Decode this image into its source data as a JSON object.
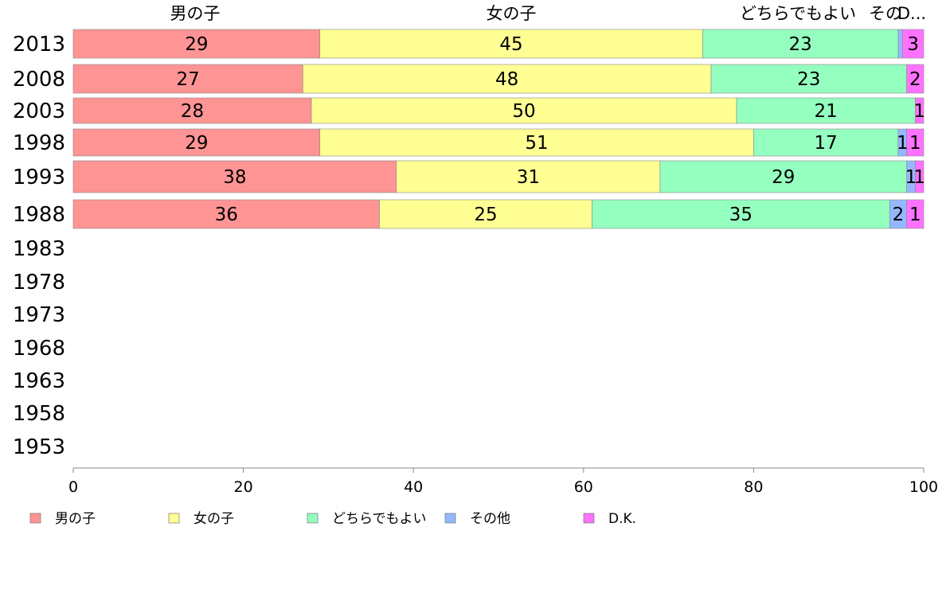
{
  "chart_data": {
    "type": "bar",
    "orientation": "horizontal",
    "stacked": true,
    "categories": [
      "2013",
      "2008",
      "2003",
      "1998",
      "1993",
      "1988",
      "1983",
      "1978",
      "1973",
      "1968",
      "1963",
      "1958",
      "1953"
    ],
    "series": [
      {
        "name": "男の子",
        "color": "#ff9494",
        "values": [
          29,
          27,
          28,
          29,
          38,
          36,
          null,
          null,
          null,
          null,
          null,
          null,
          null
        ]
      },
      {
        "name": "女の子",
        "color": "#ffff94",
        "values": [
          45,
          48,
          50,
          51,
          31,
          25,
          null,
          null,
          null,
          null,
          null,
          null,
          null
        ]
      },
      {
        "name": "どちらでもよい",
        "color": "#94ffbf",
        "values": [
          23,
          23,
          21,
          17,
          29,
          35,
          null,
          null,
          null,
          null,
          null,
          null,
          null
        ]
      },
      {
        "name": "その他",
        "color": "#94b8ff",
        "values": [
          0.5,
          0,
          0,
          1,
          1,
          2,
          null,
          null,
          null,
          null,
          null,
          null,
          null
        ]
      },
      {
        "name": "D.K.",
        "color": "#ff72ff",
        "values": [
          3,
          2,
          1,
          1,
          1,
          1,
          null,
          null,
          null,
          null,
          null,
          null,
          null
        ]
      }
    ],
    "top_labels": [
      "男の子",
      "女の子",
      "どちらでもよい",
      "その",
      "D..."
    ],
    "xlim": [
      0,
      100
    ],
    "xticks": [
      "0",
      "20",
      "40",
      "60",
      "80",
      "100"
    ],
    "grid": false,
    "legend_position": "bottom-left"
  }
}
